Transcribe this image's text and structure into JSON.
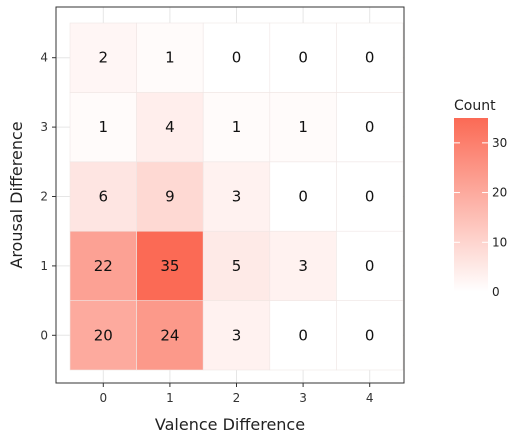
{
  "chart_data": {
    "type": "heatmap",
    "title": "",
    "xlabel": "Valence Difference",
    "ylabel": "Arousal Difference",
    "x_categories": [
      "0",
      "1",
      "2",
      "3",
      "4"
    ],
    "y_categories": [
      "0",
      "1",
      "2",
      "3",
      "4"
    ],
    "values": [
      [
        20,
        24,
        3,
        0,
        0
      ],
      [
        22,
        35,
        5,
        3,
        0
      ],
      [
        6,
        9,
        3,
        0,
        0
      ],
      [
        1,
        4,
        1,
        1,
        0
      ],
      [
        2,
        1,
        0,
        0,
        0
      ]
    ],
    "color_low": "#ffffff",
    "color_high": "#fb6a55",
    "color_limits": [
      0,
      35
    ],
    "legend": {
      "title": "Count",
      "ticks": [
        0,
        10,
        20,
        30
      ],
      "placement": "right"
    },
    "grid": true,
    "panel_background": "#ffffff",
    "grid_color": "#e6e6e6",
    "border_color": "#333333"
  }
}
